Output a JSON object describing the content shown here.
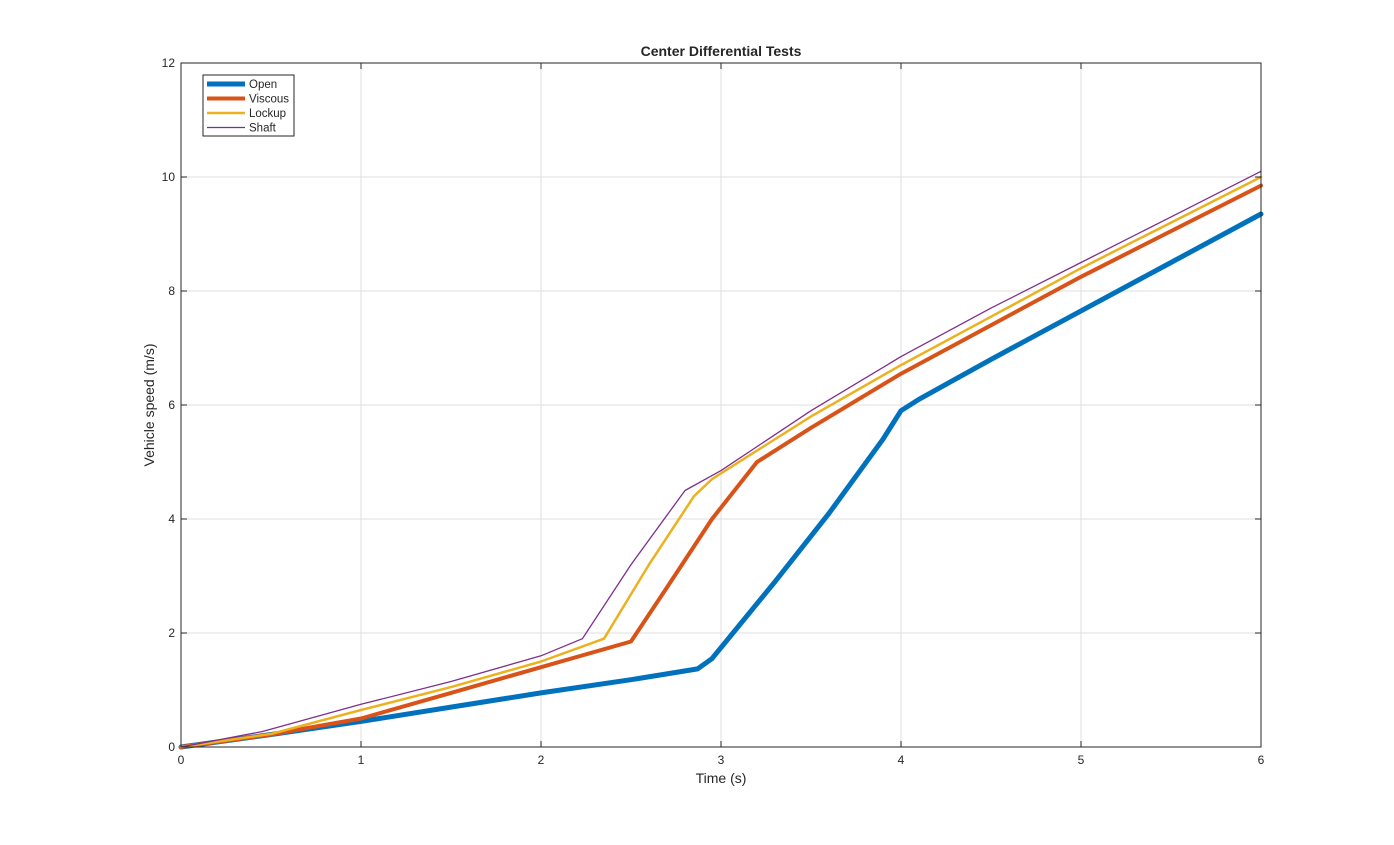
{
  "chart_data": {
    "type": "line",
    "title": "Center Differential Tests",
    "xlabel": "Time (s)",
    "ylabel": "Vehicle speed (m/s)",
    "xlim": [
      0,
      6
    ],
    "ylim": [
      0,
      12
    ],
    "xticks": [
      0,
      1,
      2,
      3,
      4,
      5,
      6
    ],
    "yticks": [
      0,
      2,
      4,
      6,
      8,
      10,
      12
    ],
    "grid": true,
    "legend_position": "top-left",
    "series": [
      {
        "name": "Open",
        "color": "#0072BD",
        "points": [
          [
            0,
            0
          ],
          [
            0.5,
            0.22
          ],
          [
            1,
            0.45
          ],
          [
            1.5,
            0.7
          ],
          [
            2,
            0.95
          ],
          [
            2.5,
            1.18
          ],
          [
            2.87,
            1.37
          ],
          [
            2.95,
            1.55
          ],
          [
            3.3,
            2.9
          ],
          [
            3.6,
            4.1
          ],
          [
            3.9,
            5.4
          ],
          [
            4.0,
            5.9
          ],
          [
            4.1,
            6.1
          ],
          [
            4.5,
            6.8
          ],
          [
            5,
            7.65
          ],
          [
            5.5,
            8.5
          ],
          [
            6,
            9.35
          ]
        ]
      },
      {
        "name": "Viscous",
        "color": "#D95319",
        "points": [
          [
            0,
            0
          ],
          [
            0.5,
            0.22
          ],
          [
            1,
            0.5
          ],
          [
            1.5,
            0.95
          ],
          [
            2,
            1.4
          ],
          [
            2.5,
            1.85
          ],
          [
            2.7,
            2.8
          ],
          [
            2.95,
            4.0
          ],
          [
            3.2,
            5.0
          ],
          [
            3.5,
            5.6
          ],
          [
            4,
            6.55
          ],
          [
            4.5,
            7.4
          ],
          [
            5,
            8.25
          ],
          [
            5.5,
            9.05
          ],
          [
            6,
            9.85
          ]
        ]
      },
      {
        "name": "Lockup",
        "color": "#EDB120",
        "points": [
          [
            0,
            0
          ],
          [
            0.5,
            0.23
          ],
          [
            1,
            0.65
          ],
          [
            1.5,
            1.05
          ],
          [
            2,
            1.5
          ],
          [
            2.35,
            1.9
          ],
          [
            2.6,
            3.2
          ],
          [
            2.85,
            4.4
          ],
          [
            2.95,
            4.7
          ],
          [
            3.2,
            5.2
          ],
          [
            3.5,
            5.8
          ],
          [
            4,
            6.7
          ],
          [
            4.5,
            7.55
          ],
          [
            5,
            8.4
          ],
          [
            5.5,
            9.2
          ],
          [
            6,
            10.0
          ]
        ]
      },
      {
        "name": "Shaft",
        "color": "#7E2F8E",
        "points": [
          [
            0,
            0
          ],
          [
            0.45,
            0.27
          ],
          [
            1,
            0.75
          ],
          [
            1.5,
            1.15
          ],
          [
            2,
            1.6
          ],
          [
            2.23,
            1.9
          ],
          [
            2.5,
            3.2
          ],
          [
            2.8,
            4.5
          ],
          [
            3.0,
            4.85
          ],
          [
            3.5,
            5.9
          ],
          [
            4,
            6.85
          ],
          [
            4.5,
            7.7
          ],
          [
            5,
            8.5
          ],
          [
            5.5,
            9.3
          ],
          [
            6,
            10.1
          ]
        ]
      }
    ]
  }
}
